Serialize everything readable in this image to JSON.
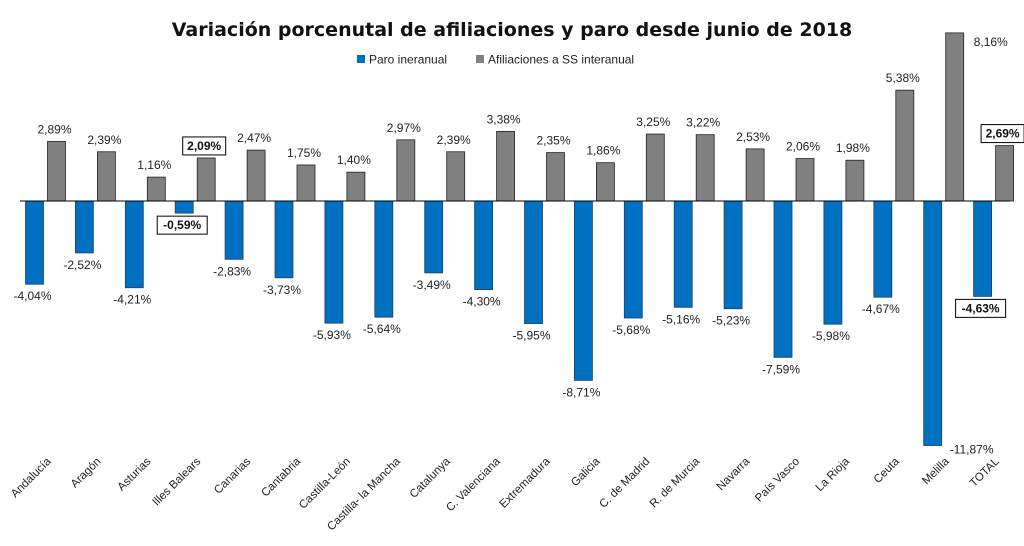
{
  "chart_data": {
    "type": "bar",
    "title": "Variación porcenutal de afiliaciones y paro desde junio de 2018",
    "xlabel": "",
    "ylabel": "",
    "legend_position": "top",
    "ylim": [
      -12.5,
      8.5
    ],
    "grid": false,
    "categories": [
      "Andalucía",
      "Aragón",
      "Asturias",
      "Illes Balears",
      "Canarias",
      "Cantabria",
      "Castilla-León",
      "Castilla- la Mancha",
      "Catalunya",
      "C. Valenciana",
      "Extremadura",
      "Galicia",
      "C. de Madrid",
      "R. de Murcia",
      "Navarra",
      "País Vasco",
      "La Rioja",
      "Ceuta",
      "Melilla",
      "TOTAL"
    ],
    "series": [
      {
        "name": "Paro ineranual",
        "color": "#0070c0",
        "values": [
          -4.04,
          -2.52,
          -4.21,
          -0.59,
          -2.83,
          -3.73,
          -5.93,
          -5.64,
          -3.49,
          -4.3,
          -5.95,
          -8.71,
          -5.68,
          -5.16,
          -5.23,
          -7.59,
          -5.98,
          -4.67,
          -11.87,
          -4.63
        ],
        "labels": [
          "-4,04%",
          "-2,52%",
          "-4,21%",
          "-0,59%",
          "-2,83%",
          "-3,73%",
          "-5,93%",
          "-5,64%",
          "-3,49%",
          "-4,30%",
          "-5,95%",
          "-8,71%",
          "-5,68%",
          "-5,16%",
          "-5,23%",
          "-7,59%",
          "-5,98%",
          "-4,67%",
          "-11,87%",
          "-4,63%"
        ]
      },
      {
        "name": "Afiliaciones a SS interanual",
        "color": "#808080",
        "values": [
          2.89,
          2.39,
          1.16,
          2.09,
          2.47,
          1.75,
          1.4,
          2.97,
          2.39,
          3.38,
          2.35,
          1.86,
          3.25,
          3.22,
          2.53,
          2.06,
          1.98,
          5.38,
          8.16,
          2.69
        ],
        "labels": [
          "2,89%",
          "2,39%",
          "1,16%",
          "2,09%",
          "2,47%",
          "1,75%",
          "1,40%",
          "2,97%",
          "2,39%",
          "3,38%",
          "2,35%",
          "1,86%",
          "3,25%",
          "3,22%",
          "2,53%",
          "2,06%",
          "1,98%",
          "5,38%",
          "8,16%",
          "2,69%"
        ]
      }
    ],
    "highlighted_labels": [
      {
        "series": 0,
        "index": 3
      },
      {
        "series": 1,
        "index": 3
      },
      {
        "series": 0,
        "index": 19
      },
      {
        "series": 1,
        "index": 19
      }
    ]
  }
}
